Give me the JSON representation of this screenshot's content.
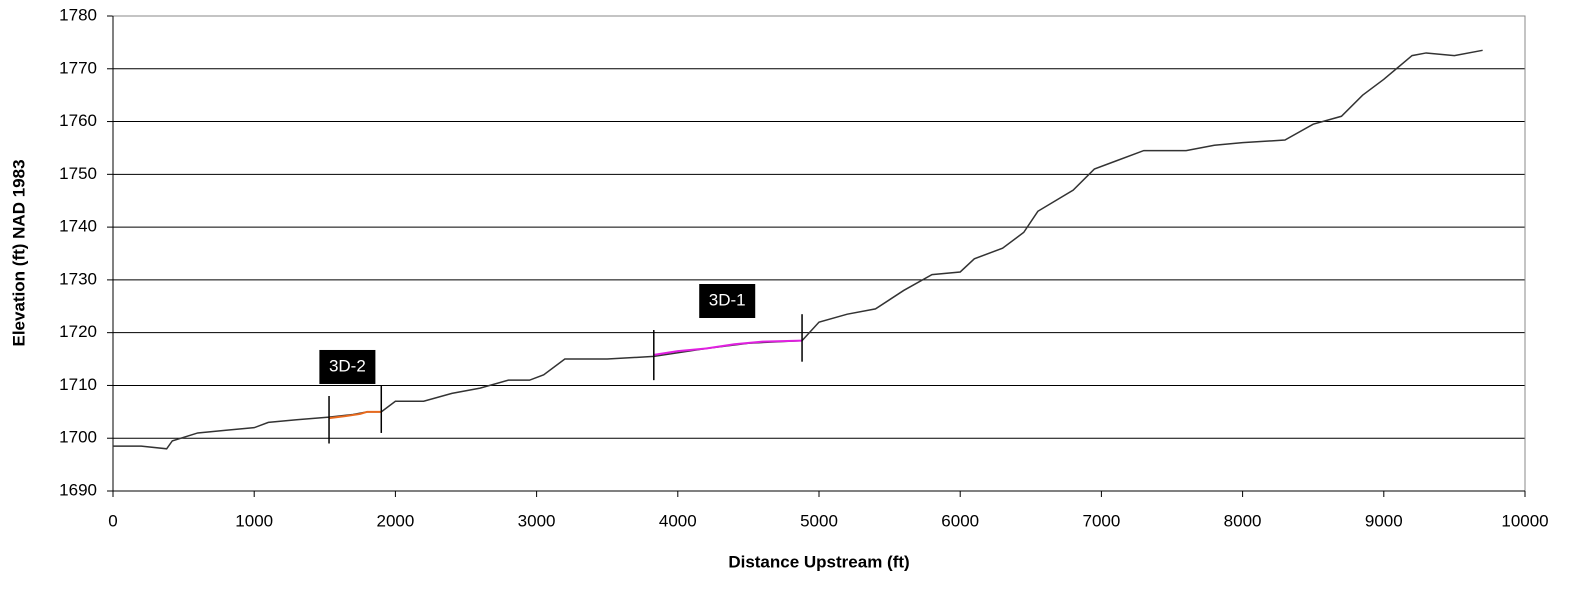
{
  "chart_data": {
    "type": "line",
    "xlabel": "Distance Upstream (ft)",
    "ylabel": "Elevation (ft) NAD 1983",
    "xlim": [
      0,
      10000
    ],
    "xticks": [
      0,
      1000,
      2000,
      3000,
      4000,
      5000,
      6000,
      7000,
      8000,
      9000,
      10000
    ],
    "ylim": [
      1690,
      1780
    ],
    "yticks": [
      1690,
      1700,
      1710,
      1720,
      1730,
      1740,
      1750,
      1760,
      1770,
      1780
    ],
    "grid": true,
    "series": [
      {
        "color": "#333333",
        "x": [
          0,
          200,
          380,
          420,
          600,
          800,
          1000,
          1100,
          1300,
          1530,
          1700,
          1800,
          1900,
          2000,
          2200,
          2400,
          2600,
          2800,
          2950,
          3050,
          3200,
          3500,
          3830,
          4200,
          4500,
          4880,
          5000,
          5200,
          5400,
          5600,
          5800,
          6000,
          6100,
          6300,
          6450,
          6550,
          6800,
          6950,
          7100,
          7300,
          7600,
          7800,
          8000,
          8300,
          8500,
          8700,
          8850,
          9000,
          9200,
          9300,
          9500,
          9700
        ],
        "values": [
          1698.5,
          1698.5,
          1698,
          1699.5,
          1701,
          1701.5,
          1702,
          1703,
          1703.5,
          1704,
          1704.5,
          1705,
          1705,
          1707,
          1707,
          1708.5,
          1709.5,
          1711,
          1711,
          1712,
          1715,
          1715,
          1715.5,
          1717,
          1718,
          1718.5,
          1722,
          1723.5,
          1724.5,
          1728,
          1731,
          1731.5,
          1734,
          1736,
          1739,
          1743,
          1747,
          1751,
          1752.5,
          1754.5,
          1754.5,
          1755.5,
          1756,
          1756.5,
          1759.5,
          1761,
          1765,
          1768,
          1772.5,
          1773,
          1772.5,
          1773.5
        ]
      },
      {
        "color": "#e86a1e",
        "x": [
          1530,
          1650,
          1750,
          1800,
          1900
        ],
        "values": [
          1703.8,
          1704.2,
          1704.6,
          1705,
          1705
        ]
      },
      {
        "color": "#e020e0",
        "x": [
          3830,
          4000,
          4200,
          4400,
          4600,
          4880
        ],
        "values": [
          1715.8,
          1716.5,
          1717,
          1717.8,
          1718.3,
          1718.5
        ]
      }
    ],
    "markers": [
      {
        "x": 1530,
        "y": [
          1699,
          1708
        ]
      },
      {
        "x": 1900,
        "y": [
          1701,
          1710
        ]
      },
      {
        "x": 3830,
        "y": [
          1711,
          1720.5
        ]
      },
      {
        "x": 4880,
        "y": [
          1714.5,
          1723.5
        ]
      }
    ],
    "annotations": [
      {
        "text": "3D-2",
        "x": 1660,
        "y": 1713.5
      },
      {
        "text": "3D-1",
        "x": 4350,
        "y": 1726
      }
    ]
  }
}
